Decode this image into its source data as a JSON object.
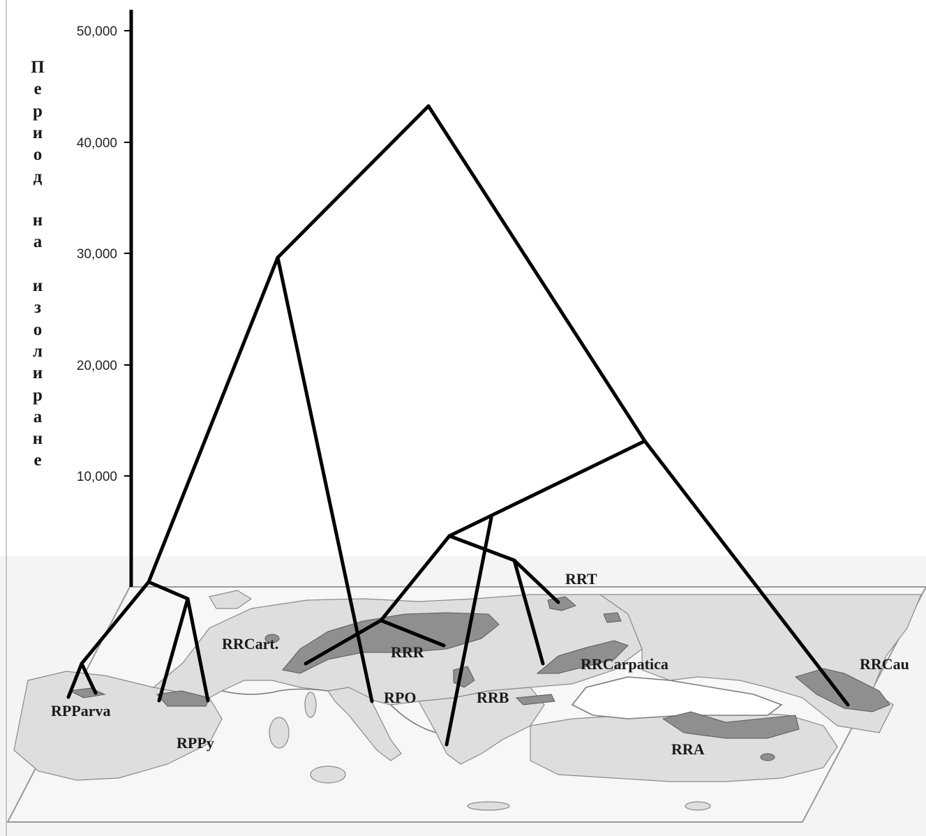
{
  "figure": {
    "y_axis_label": "Период на изолиране",
    "y_axis_ticks": [
      {
        "value": 50000,
        "label": "50,000"
      },
      {
        "value": 40000,
        "label": "40,000"
      },
      {
        "value": 30000,
        "label": "30,000"
      },
      {
        "value": 20000,
        "label": "20,000"
      },
      {
        "value": 10000,
        "label": "10,000"
      }
    ],
    "leaves": [
      {
        "id": "rpparva",
        "label": "RPParva"
      },
      {
        "id": "rppy",
        "label": "RPPy"
      },
      {
        "id": "rrcart",
        "label": "RRCart."
      },
      {
        "id": "rpo",
        "label": "RPO"
      },
      {
        "id": "rrr",
        "label": "RRR"
      },
      {
        "id": "rrb",
        "label": "RRB"
      },
      {
        "id": "rrt",
        "label": "RRT"
      },
      {
        "id": "rrcarpatica",
        "label": "RRCarpatica"
      },
      {
        "id": "rra",
        "label": "RRA"
      },
      {
        "id": "rrcau",
        "label": "RRCau"
      }
    ],
    "colors": {
      "branch": "#000000",
      "map_land": "#dedede",
      "map_plane": "#f2f2f2",
      "range_fill": "#8f8f8f"
    }
  }
}
